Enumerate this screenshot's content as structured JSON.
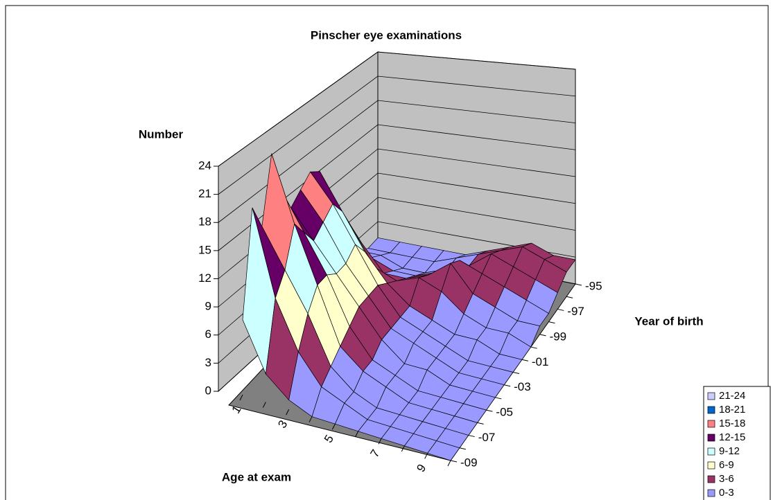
{
  "chart_data": {
    "type": "surface",
    "title": "Pinscher eye examinations",
    "z_label": "Number",
    "x_label": "Age at exam",
    "y_label": "Year of birth",
    "x": [
      "1",
      null,
      "3",
      null,
      "5",
      null,
      "7",
      null,
      "9",
      null
    ],
    "y": [
      "-95",
      null,
      "-97",
      null,
      "-99",
      null,
      "-01",
      null,
      "-03",
      null,
      "-05",
      null,
      "-07",
      null,
      "-09"
    ],
    "values": [
      [
        1,
        1,
        1,
        1,
        1,
        2,
        3,
        4,
        3,
        3
      ],
      [
        1,
        1,
        1,
        1,
        2,
        3,
        4,
        5,
        4,
        3
      ],
      [
        2,
        2,
        1,
        1,
        2,
        3,
        5,
        4,
        3,
        2
      ],
      [
        4,
        3,
        2,
        2,
        3,
        5,
        4,
        3,
        2,
        1
      ],
      [
        8,
        6,
        3,
        3,
        4,
        6,
        3,
        2,
        1,
        1
      ],
      [
        12,
        9,
        5,
        4,
        5,
        4,
        2,
        1,
        1,
        0
      ],
      [
        16,
        12,
        8,
        5,
        3,
        2,
        1,
        1,
        0,
        0
      ],
      [
        17,
        14,
        10,
        6,
        3,
        2,
        1,
        0,
        0,
        0
      ],
      [
        16,
        13,
        9,
        6,
        3,
        2,
        1,
        0,
        0,
        0
      ],
      [
        15,
        12,
        9,
        6,
        3,
        1,
        1,
        0,
        0,
        0
      ],
      [
        18,
        14,
        10,
        5,
        2,
        1,
        0,
        0,
        0,
        0
      ],
      [
        23,
        16,
        10,
        4,
        2,
        1,
        0,
        0,
        0,
        0
      ],
      [
        16,
        12,
        8,
        3,
        1,
        0,
        0,
        0,
        0,
        0
      ],
      [
        19,
        10,
        5,
        2,
        1,
        0,
        0,
        0,
        0,
        0
      ],
      [
        8,
        3,
        1,
        0,
        0,
        0,
        0,
        0,
        0,
        0
      ]
    ],
    "zlim": [
      0,
      24
    ],
    "zticks": [
      0,
      3,
      6,
      9,
      12,
      15,
      18,
      21,
      24
    ],
    "bands": [
      {
        "label": "0-3",
        "color": "#9999ff"
      },
      {
        "label": "3-6",
        "color": "#993366"
      },
      {
        "label": "6-9",
        "color": "#ffffcc"
      },
      {
        "label": "9-12",
        "color": "#ccffff"
      },
      {
        "label": "12-15",
        "color": "#660066"
      },
      {
        "label": "15-18",
        "color": "#ff8080"
      },
      {
        "label": "18-21",
        "color": "#0066cc"
      },
      {
        "label": "21-24",
        "color": "#ccccff"
      }
    ]
  }
}
